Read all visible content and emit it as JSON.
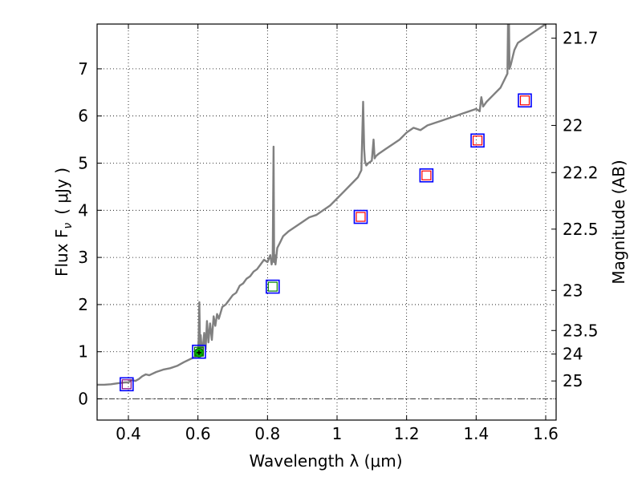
{
  "chart_data": {
    "type": "line",
    "xlabel": "Wavelength  λ (μm)",
    "ylabel": "Flux  F",
    "ylabel_sub": "ν",
    "ylabel_unit": "( μJy )",
    "right_ylabel": "Magnitude (AB)",
    "xlim": [
      0.31,
      1.63
    ],
    "ylim": [
      -0.45,
      7.95
    ],
    "grid": true,
    "x_ticks": [
      0.4,
      0.6,
      0.8,
      1.0,
      1.2,
      1.4,
      1.6
    ],
    "x_tick_labels": [
      "0.4",
      "0.6",
      "0.8",
      "1",
      "1.2",
      "1.4",
      "1.6"
    ],
    "y_ticks": [
      0,
      1,
      2,
      3,
      4,
      5,
      6,
      7
    ],
    "y_tick_labels": [
      "0",
      "1",
      "2",
      "3",
      "4",
      "5",
      "6",
      "7"
    ],
    "right_ticks": [
      {
        "label": "21.7",
        "flux": 7.65
      },
      {
        "label": "22",
        "flux": 5.8
      },
      {
        "label": "22.2",
        "flux": 4.8
      },
      {
        "label": "22.5",
        "flux": 3.6
      },
      {
        "label": "23",
        "flux": 2.3
      },
      {
        "label": "23.5",
        "flux": 1.45
      },
      {
        "label": "24",
        "flux": 0.95
      },
      {
        "label": "25",
        "flux": 0.38
      }
    ],
    "zero_line": 0,
    "series": [
      {
        "name": "model spectrum",
        "color": "#808080",
        "x": [
          0.31,
          0.33,
          0.35,
          0.37,
          0.39,
          0.4,
          0.41,
          0.42,
          0.43,
          0.44,
          0.45,
          0.46,
          0.48,
          0.5,
          0.52,
          0.54,
          0.56,
          0.58,
          0.595,
          0.6,
          0.602,
          0.604,
          0.606,
          0.608,
          0.612,
          0.618,
          0.622,
          0.626,
          0.63,
          0.635,
          0.64,
          0.645,
          0.65,
          0.655,
          0.66,
          0.67,
          0.68,
          0.69,
          0.7,
          0.71,
          0.72,
          0.73,
          0.74,
          0.75,
          0.76,
          0.77,
          0.78,
          0.79,
          0.8,
          0.808,
          0.812,
          0.815,
          0.8175,
          0.819,
          0.821,
          0.823,
          0.828,
          0.835,
          0.845,
          0.86,
          0.88,
          0.9,
          0.92,
          0.94,
          0.96,
          0.98,
          1.0,
          1.02,
          1.04,
          1.06,
          1.07,
          1.075,
          1.078,
          1.08,
          1.084,
          1.09,
          1.1,
          1.105,
          1.108,
          1.112,
          1.12,
          1.14,
          1.16,
          1.18,
          1.2,
          1.22,
          1.24,
          1.26,
          1.28,
          1.3,
          1.32,
          1.34,
          1.36,
          1.38,
          1.4,
          1.41,
          1.415,
          1.42,
          1.43,
          1.45,
          1.47,
          1.48,
          1.49,
          1.492,
          1.494,
          1.496,
          1.5,
          1.505,
          1.51,
          1.52,
          1.54,
          1.56,
          1.58,
          1.6,
          1.62
        ],
        "y": [
          0.3,
          0.3,
          0.31,
          0.33,
          0.35,
          0.35,
          0.4,
          0.38,
          0.42,
          0.48,
          0.52,
          0.5,
          0.57,
          0.62,
          0.65,
          0.7,
          0.78,
          0.85,
          0.9,
          1.0,
          1.25,
          2.05,
          1.1,
          1.35,
          0.95,
          1.4,
          1.05,
          1.65,
          1.2,
          1.6,
          1.25,
          1.75,
          1.55,
          1.8,
          1.7,
          1.95,
          2.0,
          2.1,
          2.2,
          2.25,
          2.4,
          2.45,
          2.55,
          2.6,
          2.7,
          2.75,
          2.85,
          2.95,
          2.9,
          3.05,
          2.85,
          2.95,
          5.35,
          2.9,
          3.05,
          2.85,
          3.2,
          3.3,
          3.45,
          3.55,
          3.65,
          3.75,
          3.85,
          3.9,
          4.0,
          4.1,
          4.25,
          4.4,
          4.55,
          4.7,
          4.85,
          6.3,
          5.3,
          5.05,
          4.95,
          5.0,
          5.05,
          5.5,
          5.1,
          5.15,
          5.2,
          5.3,
          5.4,
          5.5,
          5.65,
          5.75,
          5.7,
          5.8,
          5.85,
          5.9,
          5.95,
          6.0,
          6.05,
          6.1,
          6.15,
          6.1,
          6.4,
          6.2,
          6.3,
          6.45,
          6.6,
          6.75,
          6.9,
          8.2,
          8.2,
          7.0,
          7.1,
          7.25,
          7.4,
          7.55,
          7.65,
          7.75,
          7.85,
          7.95,
          8.05
        ]
      }
    ],
    "photometry_outer": {
      "name": "observed photometry (blue squares)",
      "color": "#0000ff",
      "x": [
        0.395,
        0.603,
        0.815,
        1.068,
        1.257,
        1.404,
        1.54
      ],
      "y": [
        0.31,
        1.0,
        2.38,
        3.86,
        4.74,
        5.48,
        6.33
      ]
    },
    "photometry_inner": {
      "name": "model photometry (inner squares)",
      "x": [
        0.395,
        0.603,
        0.815,
        1.068,
        1.257,
        1.404,
        1.54
      ],
      "y": [
        0.31,
        1.0,
        2.38,
        3.86,
        4.74,
        5.48,
        6.33
      ],
      "colors": [
        "#800080",
        "#008000",
        "#008000",
        "#ff0000",
        "#ff0000",
        "#ff0000",
        "#ff0000"
      ]
    },
    "highlight_point": {
      "x": 0.603,
      "y": 0.98,
      "yerr": 0.05,
      "color": "#00b000"
    }
  }
}
